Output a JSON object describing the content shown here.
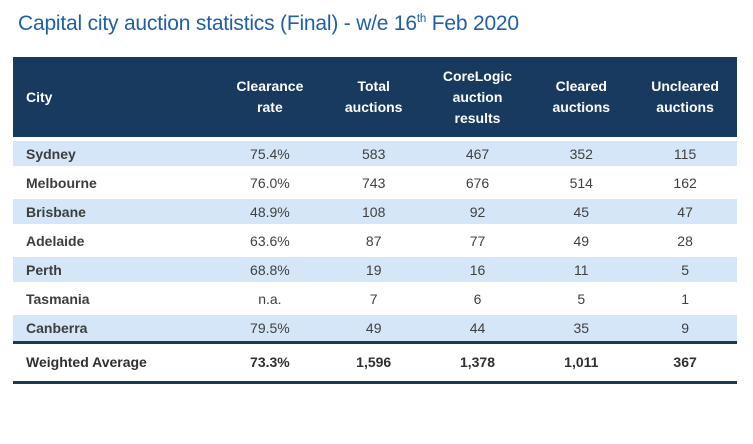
{
  "title": {
    "prefix": "Capital city auction statistics (Final) - w/e 16",
    "superscript": "th",
    "suffix": " Feb 2020"
  },
  "colors": {
    "title_text": "#1F5FA6",
    "header_background": "#173A5E",
    "header_text": "#FFFFFF",
    "row_alt_background": "#D4E6F8",
    "body_text": "#404040",
    "footer_rule": "#1C3A57"
  },
  "chart_data": {
    "type": "table",
    "title": "Capital city auction statistics (Final) - w/e 16th Feb 2020",
    "columns": [
      "City",
      "Clearance rate",
      "Total auctions",
      "CoreLogic auction results",
      "Cleared auctions",
      "Uncleared auctions"
    ],
    "rows": [
      [
        "Sydney",
        "75.4%",
        "583",
        "467",
        "352",
        "115"
      ],
      [
        "Melbourne",
        "76.0%",
        "743",
        "676",
        "514",
        "162"
      ],
      [
        "Brisbane",
        "48.9%",
        "108",
        "92",
        "45",
        "47"
      ],
      [
        "Adelaide",
        "63.6%",
        "87",
        "77",
        "49",
        "28"
      ],
      [
        "Perth",
        "68.8%",
        "19",
        "16",
        "11",
        "5"
      ],
      [
        "Tasmania",
        "n.a.",
        "7",
        "6",
        "5",
        "1"
      ],
      [
        "Canberra",
        "79.5%",
        "49",
        "44",
        "35",
        "9"
      ]
    ],
    "footer_row": [
      "Weighted Average",
      "73.3%",
      "1,596",
      "1,378",
      "1,011",
      "367"
    ]
  }
}
